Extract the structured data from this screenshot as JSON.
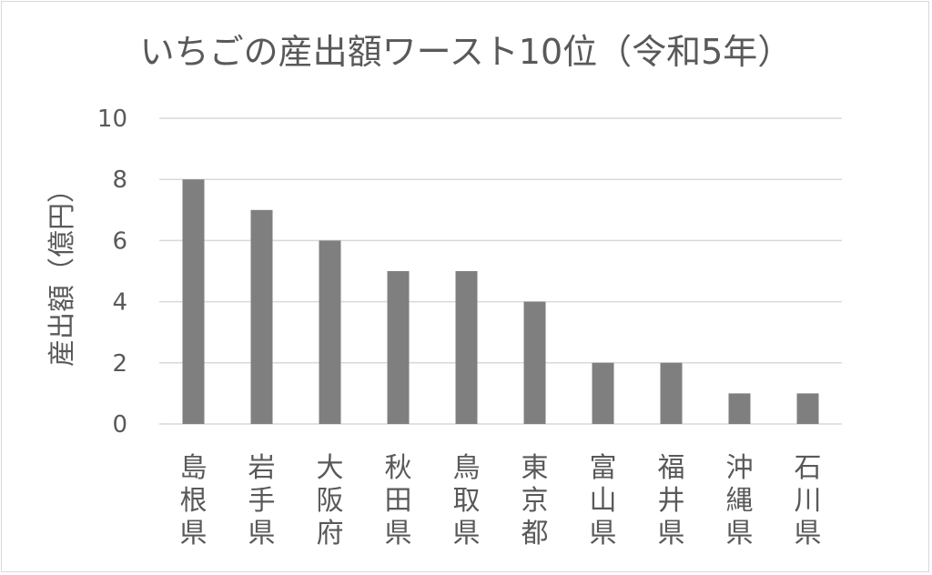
{
  "chart_data": {
    "type": "bar",
    "title": "いちごの産出額ワースト10位（令和5年）",
    "xlabel": "",
    "ylabel": "産出額（億円）",
    "categories": [
      "島根県",
      "岩手県",
      "大阪府",
      "秋田県",
      "鳥取県",
      "東京都",
      "富山県",
      "福井県",
      "沖縄県",
      "石川県"
    ],
    "values": [
      8,
      7,
      6,
      5,
      5,
      4,
      2,
      2,
      1,
      1
    ],
    "ylim": [
      0,
      10
    ],
    "yticks": [
      0,
      2,
      4,
      6,
      8,
      10
    ],
    "grid": true,
    "legend": "none",
    "colors": {
      "bar": "#7f7f7f",
      "grid": "#d9d9d9",
      "text": "#595959"
    }
  }
}
